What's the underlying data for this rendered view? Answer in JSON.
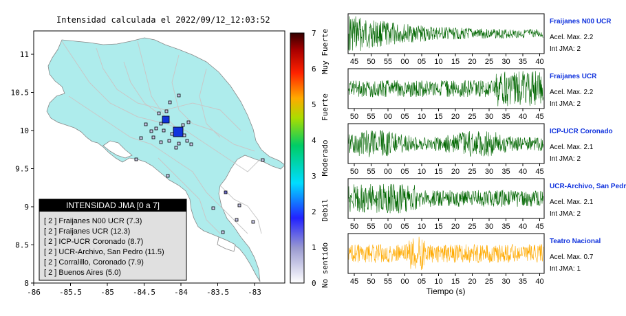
{
  "map": {
    "title": "Intensidad calculada el 2022/09/12_12:03:52",
    "x_ticks": [
      "-86",
      "-85.5",
      "-85",
      "-84.5",
      "-84",
      "-83.5",
      "-83"
    ],
    "y_ticks": [
      "11",
      "10.5",
      "10",
      "9.5",
      "9",
      "8.5",
      "8"
    ],
    "legend": {
      "title": "INTENSIDAD JMA [0 a 7]",
      "items": [
        "[ 2 ]  Fraijanes N00 UCR (7.3)",
        "[ 2 ]  Fraijanes UCR (12.3)",
        "[ 2 ]  ICP-UCR Coronado (8.7)",
        "[ 2 ]  UCR-Archivo, San Pedro (11.5)",
        "[ 2 ]  Corralillo, Coronado (7.9)",
        "[ 2 ]  Buenos Aires (5.0)"
      ]
    },
    "colorbar": {
      "ticks": [
        "0",
        "1",
        "2",
        "3",
        "4",
        "5",
        "6",
        "7"
      ],
      "labels": [
        "No sentido",
        "Debil",
        "Moderado",
        "Fuerte",
        "Muy Fuerte"
      ]
    }
  },
  "stations": [
    {
      "name": "Fraijanes N00 UCR",
      "accel": "Acel. Max. 2.2",
      "jma": "Int JMA: 2",
      "color": "#006600",
      "ticks": [
        "45",
        "50",
        "55",
        "00",
        "05",
        "10",
        "15",
        "20",
        "25",
        "30",
        "35",
        "40"
      ]
    },
    {
      "name": "Fraijanes UCR",
      "accel": "Acel. Max. 2.2",
      "jma": "Int JMA: 2",
      "color": "#006600",
      "ticks": [
        "50",
        "55",
        "00",
        "05",
        "10",
        "15",
        "20",
        "25",
        "30",
        "35",
        "40",
        "45"
      ]
    },
    {
      "name": "ICP-UCR Coronado",
      "accel": "Acel. Max. 2.1",
      "jma": "Int JMA: 2",
      "color": "#006600",
      "ticks": [
        "50",
        "55",
        "00",
        "05",
        "10",
        "15",
        "20",
        "25",
        "30",
        "35",
        "40",
        "45"
      ]
    },
    {
      "name": "UCR-Archivo, San Pedro",
      "accel": "Acel. Max. 2.1",
      "jma": "Int JMA: 2",
      "color": "#006600",
      "ticks": [
        "50",
        "55",
        "00",
        "05",
        "10",
        "15",
        "20",
        "25",
        "30",
        "35",
        "40",
        "45"
      ]
    },
    {
      "name": "Teatro Nacional",
      "accel": "Acel. Max. 0.7",
      "jma": "Int JMA: 1",
      "color": "#ffaa00",
      "ticks": [
        "45",
        "50",
        "55",
        "00",
        "05",
        "10",
        "15",
        "20",
        "25",
        "30",
        "35",
        "40"
      ]
    }
  ],
  "xlabel": "Tiempo (s)",
  "colors": {
    "land": "#aeecec",
    "highlight": "#1133dd",
    "legend_bg": "#e0e0e0",
    "legend_header": "#000000"
  }
}
